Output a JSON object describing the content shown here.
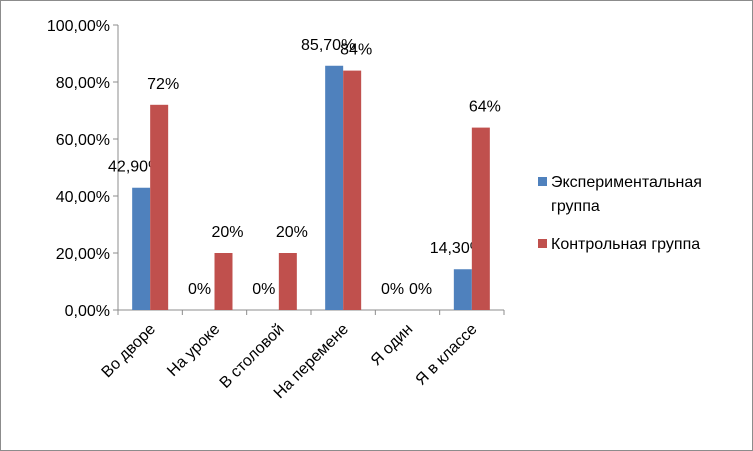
{
  "chart_data": {
    "type": "bar",
    "categories": [
      "Во дворе",
      "На уроке",
      "В столовой",
      "На перемене",
      "Я один",
      "Я в классе"
    ],
    "series": [
      {
        "name": "Экспериментальная группа",
        "legend_lines": [
          "Экспериментальная",
          "группа"
        ],
        "color": "#4f81bd",
        "values": [
          42.9,
          0,
          0,
          85.7,
          0,
          14.3
        ],
        "labels": [
          "42,90%",
          "0%",
          "0%",
          "85,70%",
          "0%",
          "14,30%"
        ]
      },
      {
        "name": "Контрольная группа",
        "legend_lines": [
          "Контрольная группа"
        ],
        "color": "#c0504d",
        "values": [
          72,
          20,
          20,
          84,
          0,
          64
        ],
        "labels": [
          "72%",
          "20%",
          "20%",
          "84%",
          "0%",
          "64%"
        ]
      }
    ],
    "ylim": [
      0,
      100
    ],
    "yticks": [
      {
        "value": 0,
        "label": "0,00%"
      },
      {
        "value": 20,
        "label": "20,00%"
      },
      {
        "value": 40,
        "label": "40,00%"
      },
      {
        "value": 60,
        "label": "60,00%"
      },
      {
        "value": 80,
        "label": "80,00%"
      },
      {
        "value": 100,
        "label": "100,00%"
      }
    ],
    "title": "",
    "xlabel": "",
    "ylabel": "",
    "grid": false,
    "legend_position": "right"
  }
}
